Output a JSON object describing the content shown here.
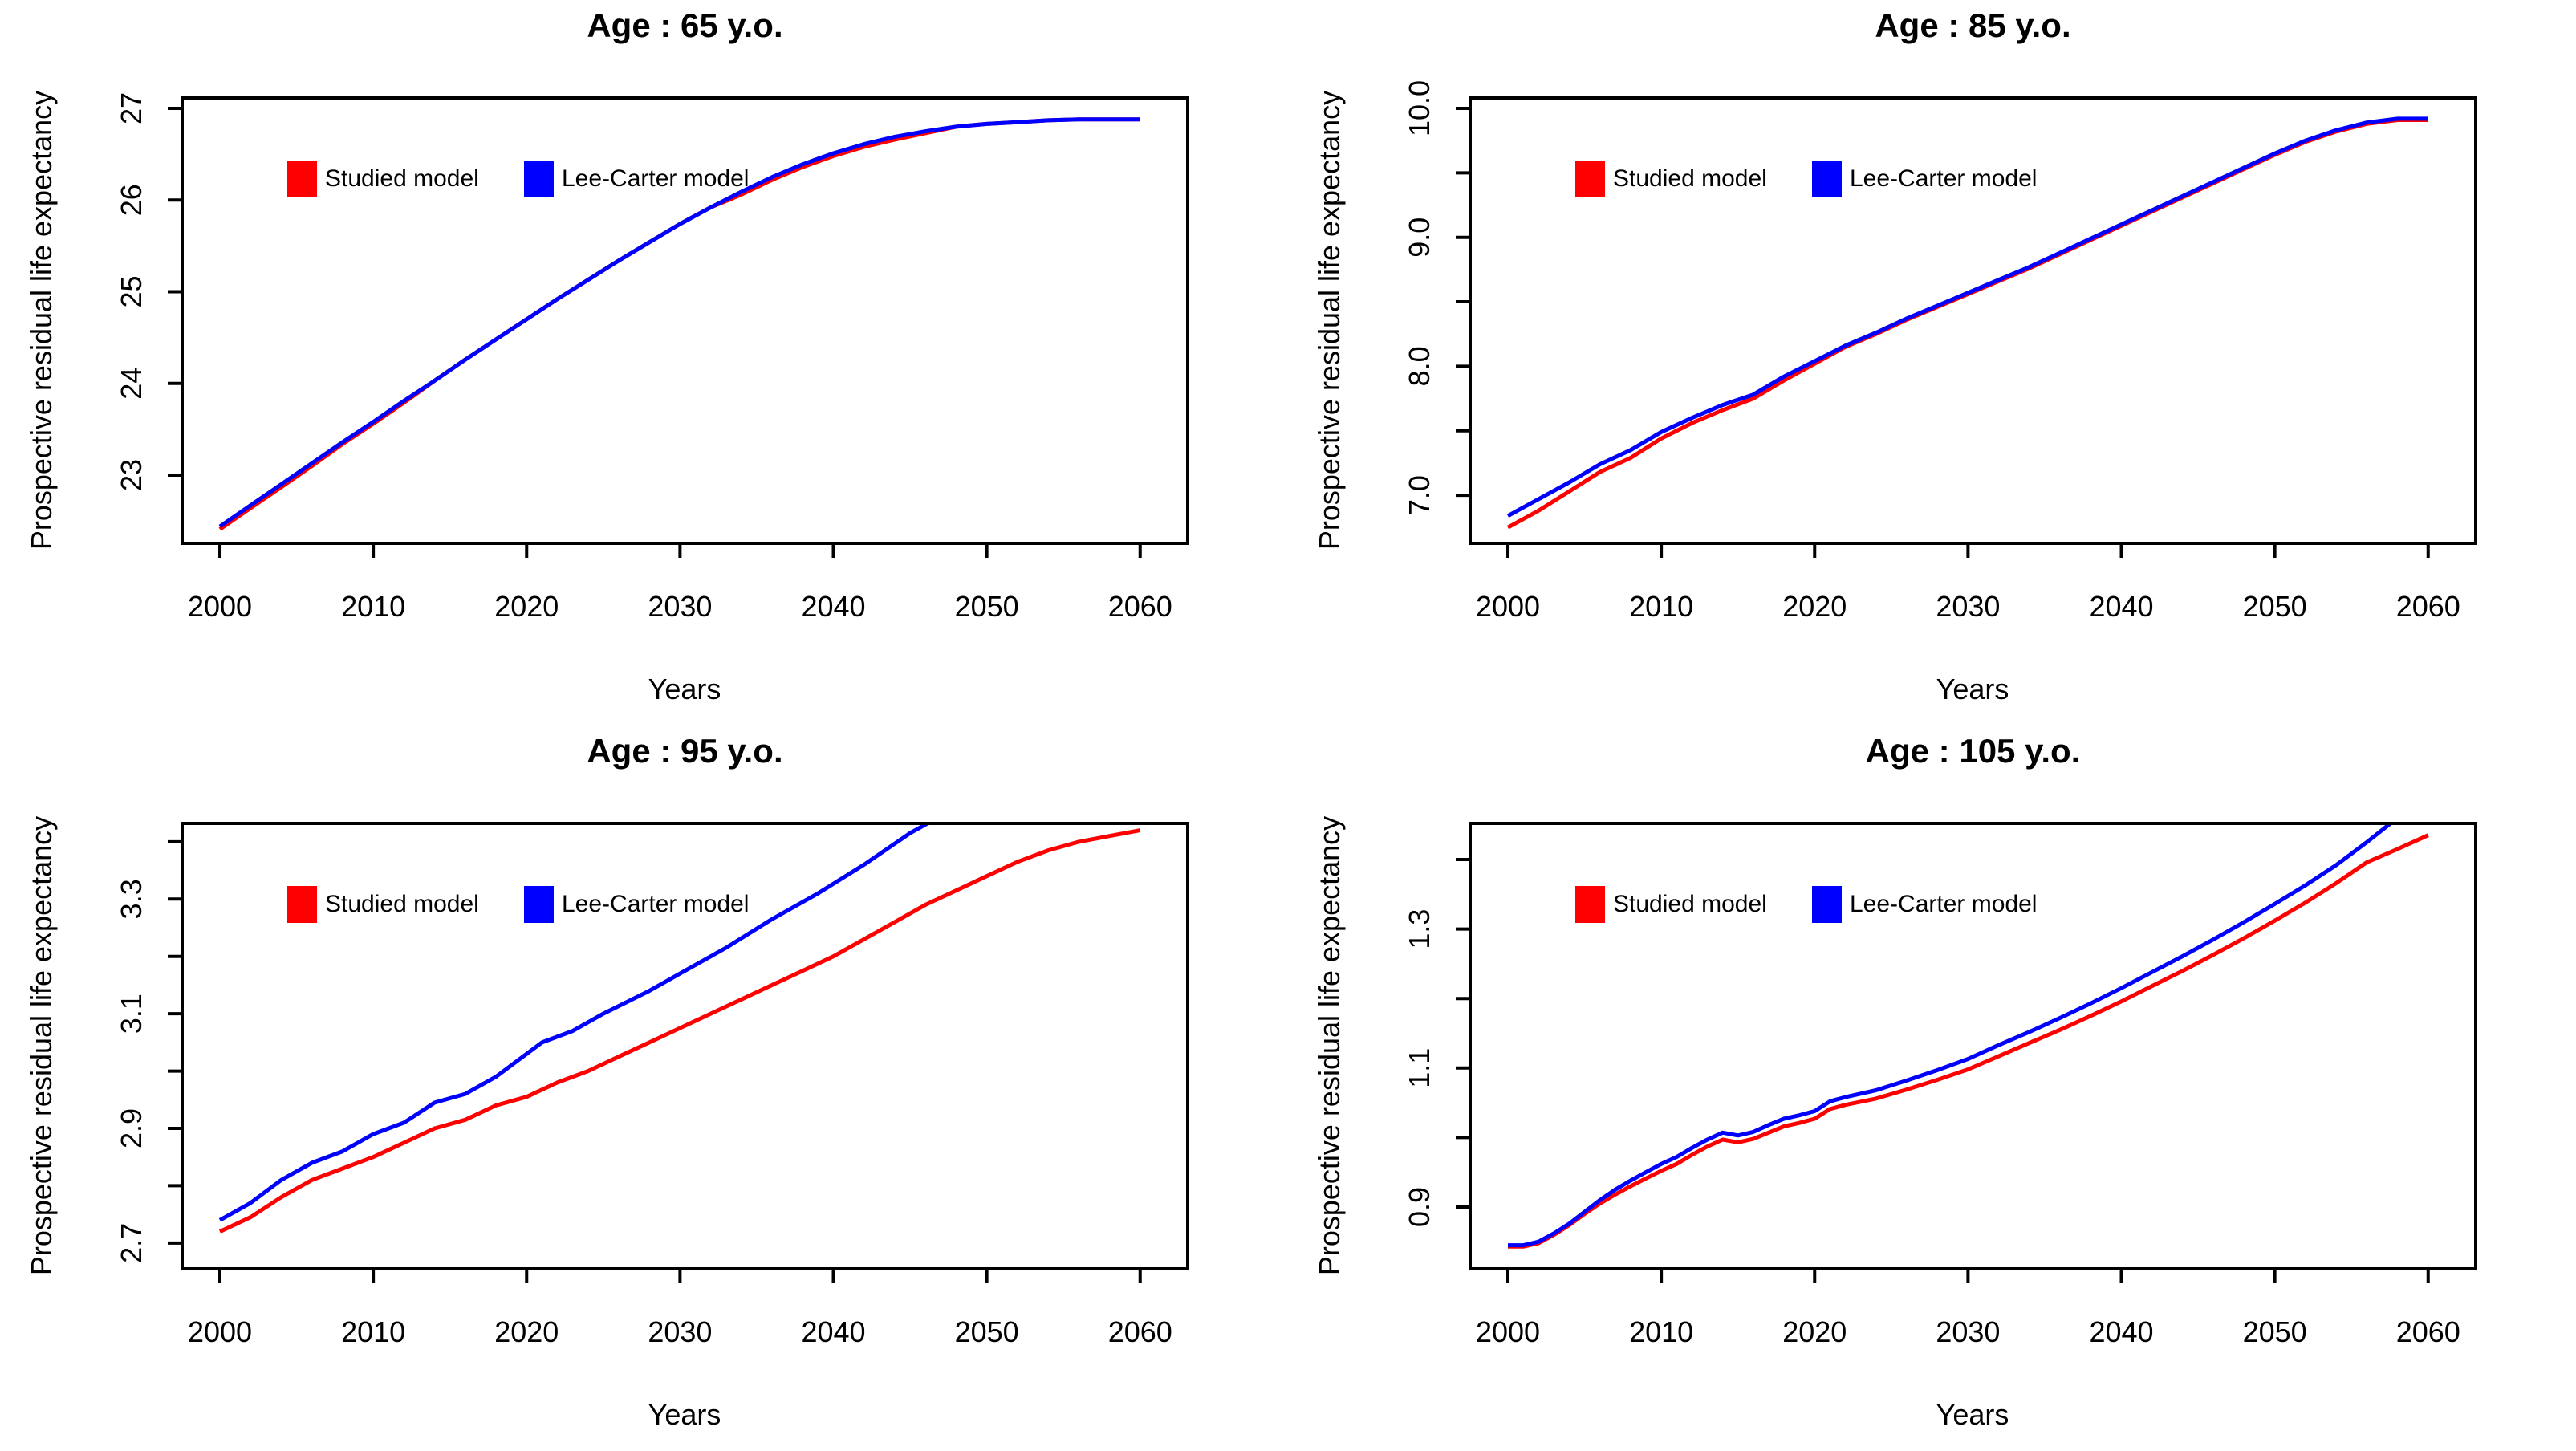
{
  "chart_data": [
    {
      "type": "line",
      "title": "Age : 65 y.o.",
      "xlabel": "Years",
      "ylabel": "Prospective residual life expectancy",
      "grid": false,
      "legend_position": "top-left-inside",
      "x_ticks": [
        2000,
        2010,
        2020,
        2030,
        2040,
        2050,
        2060
      ],
      "xlim": [
        1997.54,
        2063.1
      ],
      "ylim": [
        22.256,
        27.114
      ],
      "y_ticks": {
        "values": [
          23,
          24,
          25,
          26,
          27
        ],
        "labels": [
          "23",
          "24",
          "25",
          "26",
          "27"
        ]
      },
      "series": [
        {
          "name": "Studied model",
          "color": "#ff0000",
          "x": [
            2000,
            2002,
            2004,
            2006,
            2008,
            2010,
            2012,
            2014,
            2016,
            2018,
            2020,
            2022,
            2024,
            2026,
            2028,
            2030,
            2032,
            2034,
            2036,
            2038,
            2040,
            2042,
            2044,
            2046,
            2048,
            2050,
            2052,
            2054,
            2056,
            2058,
            2060
          ],
          "y": [
            22.41,
            22.64,
            22.87,
            23.1,
            23.34,
            23.56,
            23.79,
            24.03,
            24.26,
            24.48,
            24.7,
            24.92,
            25.13,
            25.34,
            25.54,
            25.74,
            25.92,
            26.06,
            26.22,
            26.36,
            26.48,
            26.58,
            26.66,
            26.73,
            26.8,
            26.83,
            26.85,
            26.87,
            26.88,
            26.88,
            26.88
          ]
        },
        {
          "name": "Lee-Carter model",
          "color": "#0000ff",
          "x": [
            2000,
            2002,
            2004,
            2006,
            2008,
            2010,
            2012,
            2014,
            2016,
            2018,
            2020,
            2022,
            2024,
            2026,
            2028,
            2030,
            2032,
            2034,
            2036,
            2038,
            2040,
            2042,
            2044,
            2046,
            2048,
            2050,
            2052,
            2054,
            2056,
            2058,
            2060
          ],
          "y": [
            22.44,
            22.67,
            22.9,
            23.13,
            23.36,
            23.58,
            23.81,
            24.03,
            24.26,
            24.48,
            24.7,
            24.92,
            25.13,
            25.34,
            25.54,
            25.74,
            25.92,
            26.09,
            26.25,
            26.39,
            26.51,
            26.61,
            26.69,
            26.75,
            26.8,
            26.83,
            26.85,
            26.87,
            26.88,
            26.88,
            26.88
          ]
        }
      ]
    },
    {
      "type": "line",
      "title": "Age : 85 y.o.",
      "xlabel": "Years",
      "ylabel": "Prospective residual life expectancy",
      "grid": false,
      "legend_position": "top-left-inside",
      "x_ticks": [
        2000,
        2010,
        2020,
        2030,
        2040,
        2050,
        2060
      ],
      "xlim": [
        1997.54,
        2063.1
      ],
      "ylim": [
        6.627,
        10.081
      ],
      "y_ticks": {
        "values": [
          7.0,
          7.5,
          8.0,
          8.5,
          9.0,
          9.5,
          10.0
        ],
        "labels": [
          "7.0",
          "",
          "8.0",
          "",
          "9.0",
          "",
          "10.0"
        ]
      },
      "series": [
        {
          "name": "Studied model",
          "color": "#ff0000",
          "x": [
            2000,
            2002,
            2004,
            2006,
            2008,
            2010,
            2012,
            2014,
            2016,
            2018,
            2020,
            2022,
            2024,
            2026,
            2028,
            2030,
            2032,
            2034,
            2036,
            2038,
            2040,
            2042,
            2044,
            2046,
            2048,
            2050,
            2052,
            2054,
            2056,
            2058,
            2060
          ],
          "y": [
            6.75,
            6.88,
            7.03,
            7.18,
            7.29,
            7.44,
            7.56,
            7.66,
            7.75,
            7.89,
            8.02,
            8.15,
            8.25,
            8.36,
            8.46,
            8.56,
            8.66,
            8.76,
            8.87,
            8.98,
            9.09,
            9.2,
            9.31,
            9.42,
            9.53,
            9.64,
            9.74,
            9.82,
            9.88,
            9.91,
            9.91
          ]
        },
        {
          "name": "Lee-Carter model",
          "color": "#0000ff",
          "x": [
            2000,
            2002,
            2004,
            2006,
            2008,
            2010,
            2012,
            2014,
            2016,
            2018,
            2020,
            2022,
            2024,
            2026,
            2028,
            2030,
            2032,
            2034,
            2036,
            2038,
            2040,
            2042,
            2044,
            2046,
            2048,
            2050,
            2052,
            2054,
            2056,
            2058,
            2060
          ],
          "y": [
            6.84,
            6.97,
            7.1,
            7.24,
            7.35,
            7.49,
            7.6,
            7.7,
            7.78,
            7.92,
            8.04,
            8.16,
            8.26,
            8.37,
            8.47,
            8.57,
            8.67,
            8.77,
            8.88,
            8.99,
            9.1,
            9.21,
            9.32,
            9.43,
            9.54,
            9.65,
            9.75,
            9.83,
            9.89,
            9.92,
            9.92
          ]
        }
      ]
    },
    {
      "type": "line",
      "title": "Age : 95 y.o.",
      "xlabel": "Years",
      "ylabel": "Prospective residual life expectancy",
      "grid": false,
      "legend_position": "top-left-inside",
      "x_ticks": [
        2000,
        2010,
        2020,
        2030,
        2040,
        2050,
        2060
      ],
      "xlim": [
        1997.54,
        2063.1
      ],
      "ylim": [
        2.655,
        3.432
      ],
      "y_ticks": {
        "values": [
          2.7,
          2.8,
          2.9,
          3.0,
          3.1,
          3.2,
          3.3,
          3.4
        ],
        "labels": [
          "2.7",
          "",
          "2.9",
          "",
          "3.1",
          "",
          "3.3",
          ""
        ]
      },
      "series": [
        {
          "name": "Studied model",
          "color": "#ff0000",
          "x": [
            2000,
            2002,
            2004,
            2006,
            2008,
            2010,
            2012,
            2014,
            2016,
            2018,
            2020,
            2022,
            2024,
            2026,
            2028,
            2030,
            2032,
            2034,
            2036,
            2038,
            2040,
            2042,
            2044,
            2046,
            2048,
            2050,
            2052,
            2054,
            2056,
            2058,
            2060
          ],
          "y": [
            2.72,
            2.745,
            2.78,
            2.81,
            2.83,
            2.85,
            2.875,
            2.9,
            2.915,
            2.94,
            2.955,
            2.98,
            3.0,
            3.025,
            3.05,
            3.075,
            3.1,
            3.125,
            3.15,
            3.175,
            3.2,
            3.23,
            3.26,
            3.29,
            3.315,
            3.34,
            3.365,
            3.385,
            3.4,
            3.41,
            3.42
          ]
        },
        {
          "name": "Lee-Carter model",
          "color": "#0000ff",
          "x": [
            2000,
            2002,
            2004,
            2006,
            2008,
            2010,
            2012,
            2014,
            2016,
            2018,
            2020,
            2021,
            2023,
            2025,
            2028,
            2030,
            2033,
            2036,
            2039,
            2042,
            2045,
            2048
          ],
          "y": [
            2.74,
            2.77,
            2.81,
            2.84,
            2.86,
            2.89,
            2.91,
            2.945,
            2.96,
            2.99,
            3.03,
            3.05,
            3.07,
            3.1,
            3.14,
            3.17,
            3.215,
            3.265,
            3.31,
            3.36,
            3.415,
            3.46
          ]
        }
      ]
    },
    {
      "type": "line",
      "title": "Age : 105 y.o.",
      "xlabel": "Years",
      "ylabel": "Prospective residual life expectancy",
      "grid": false,
      "legend_position": "top-left-inside",
      "x_ticks": [
        2000,
        2010,
        2020,
        2030,
        2040,
        2050,
        2060
      ],
      "xlim": [
        1997.54,
        2063.1
      ],
      "ylim": [
        0.811,
        1.452
      ],
      "y_ticks": {
        "values": [
          0.9,
          1.0,
          1.1,
          1.2,
          1.3,
          1.4
        ],
        "labels": [
          "0.9",
          "",
          "1.1",
          "",
          "1.3",
          ""
        ]
      },
      "series": [
        {
          "name": "Studied model",
          "color": "#ff0000",
          "x": [
            2000,
            2001,
            2002,
            2003,
            2004,
            2005,
            2006,
            2007,
            2008,
            2009,
            2010,
            2011,
            2012,
            2013,
            2014,
            2015,
            2016,
            2017,
            2018,
            2019,
            2020,
            2021,
            2022,
            2024,
            2026,
            2028,
            2030,
            2032,
            2034,
            2036,
            2038,
            2040,
            2042,
            2044,
            2046,
            2048,
            2050,
            2052,
            2054,
            2056,
            2058,
            2060
          ],
          "y": [
            0.843,
            0.843,
            0.848,
            0.86,
            0.874,
            0.89,
            0.905,
            0.918,
            0.93,
            0.941,
            0.952,
            0.962,
            0.975,
            0.987,
            0.997,
            0.993,
            0.998,
            1.007,
            1.016,
            1.021,
            1.027,
            1.041,
            1.047,
            1.056,
            1.069,
            1.083,
            1.098,
            1.117,
            1.136,
            1.155,
            1.175,
            1.196,
            1.218,
            1.24,
            1.263,
            1.287,
            1.312,
            1.338,
            1.366,
            1.396,
            1.415,
            1.435
          ]
        },
        {
          "name": "Lee-Carter model",
          "color": "#0000ff",
          "x": [
            2000,
            2001,
            2002,
            2003,
            2004,
            2005,
            2006,
            2007,
            2008,
            2009,
            2010,
            2011,
            2012,
            2013,
            2014,
            2015,
            2016,
            2017,
            2018,
            2019,
            2020,
            2021,
            2022,
            2024,
            2026,
            2028,
            2030,
            2032,
            2034,
            2036,
            2038,
            2040,
            2042,
            2044,
            2046,
            2048,
            2050,
            2052,
            2054,
            2056,
            2058
          ],
          "y": [
            0.845,
            0.845,
            0.85,
            0.862,
            0.876,
            0.893,
            0.91,
            0.925,
            0.938,
            0.95,
            0.962,
            0.972,
            0.985,
            0.997,
            1.007,
            1.003,
            1.008,
            1.018,
            1.027,
            1.032,
            1.038,
            1.052,
            1.058,
            1.068,
            1.082,
            1.097,
            1.113,
            1.133,
            1.152,
            1.172,
            1.193,
            1.215,
            1.238,
            1.261,
            1.285,
            1.31,
            1.336,
            1.363,
            1.392,
            1.425,
            1.46
          ]
        }
      ]
    }
  ]
}
